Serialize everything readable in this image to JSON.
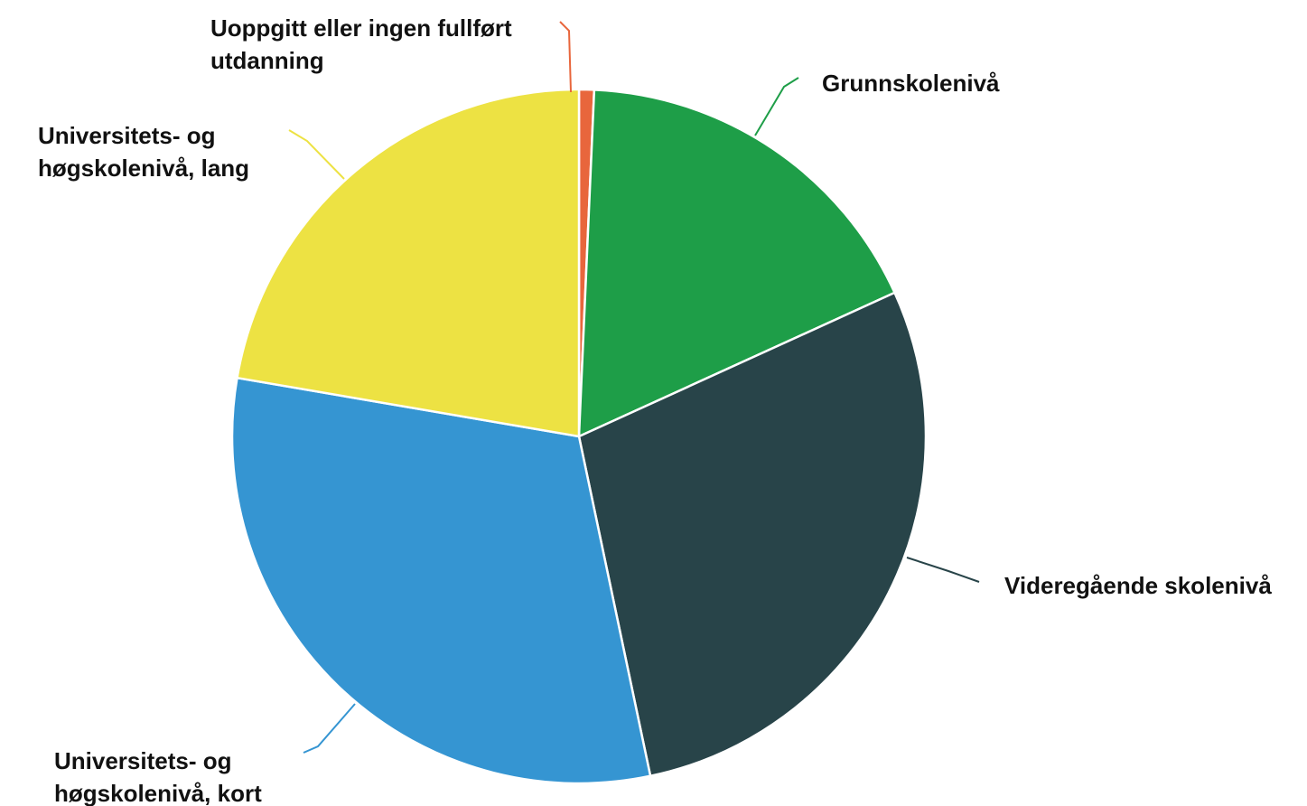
{
  "chart_data": {
    "type": "pie",
    "title": "",
    "unit": "%",
    "slices": [
      {
        "label": "Uoppgitt eller ingen fullført utdanning",
        "value": 0.7,
        "color": "#E8663C"
      },
      {
        "label": "Grunnskolenivå",
        "value": 17.5,
        "color": "#1E9E48"
      },
      {
        "label": "Videregående skolenivå",
        "value": 28.5,
        "color": "#284449"
      },
      {
        "label": "Universitets- og høgskolenivå, kort",
        "value": 31.0,
        "color": "#3595D2"
      },
      {
        "label": "Universitets- og høgskolenivå, lang",
        "value": 22.3,
        "color": "#EDE243"
      }
    ],
    "start_angle_deg": 0,
    "direction": "counterclockwise",
    "legend": "none",
    "labels": "outside with leader lines"
  }
}
